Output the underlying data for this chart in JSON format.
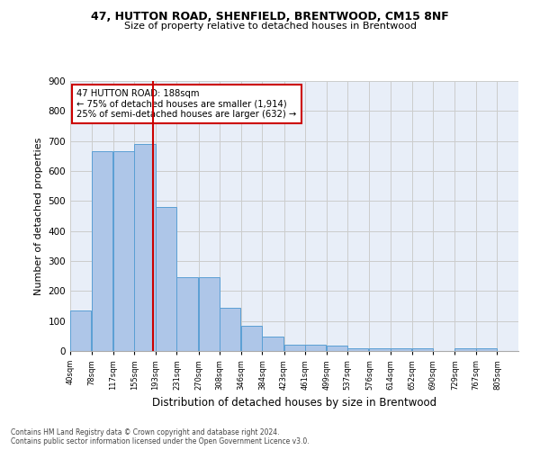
{
  "title1": "47, HUTTON ROAD, SHENFIELD, BRENTWOOD, CM15 8NF",
  "title2": "Size of property relative to detached houses in Brentwood",
  "xlabel": "Distribution of detached houses by size in Brentwood",
  "ylabel": "Number of detached properties",
  "bar_values": [
    135,
    665,
    665,
    690,
    480,
    245,
    245,
    145,
    85,
    47,
    22,
    20,
    18,
    10,
    8,
    8,
    8,
    0,
    8,
    8,
    0
  ],
  "bin_edges": [
    40,
    78,
    117,
    155,
    193,
    231,
    270,
    308,
    346,
    384,
    423,
    461,
    499,
    537,
    576,
    614,
    652,
    690,
    729,
    767,
    805
  ],
  "x_labels": [
    "40sqm",
    "78sqm",
    "117sqm",
    "155sqm",
    "193sqm",
    "231sqm",
    "270sqm",
    "308sqm",
    "346sqm",
    "384sqm",
    "423sqm",
    "461sqm",
    "499sqm",
    "537sqm",
    "576sqm",
    "614sqm",
    "652sqm",
    "690sqm",
    "729sqm",
    "767sqm",
    "805sqm"
  ],
  "bar_color": "#aec6e8",
  "bar_edge_color": "#5a9fd4",
  "red_line_x": 188,
  "annotation_line1": "47 HUTTON ROAD: 188sqm",
  "annotation_line2": "← 75% of detached houses are smaller (1,914)",
  "annotation_line3": "25% of semi-detached houses are larger (632) →",
  "annotation_box_color": "#ffffff",
  "annotation_border_color": "#cc0000",
  "vline_color": "#cc0000",
  "grid_color": "#cccccc",
  "background_color": "#e8eef8",
  "footer1": "Contains HM Land Registry data © Crown copyright and database right 2024.",
  "footer2": "Contains public sector information licensed under the Open Government Licence v3.0.",
  "ylim": [
    0,
    900
  ],
  "yticks": [
    0,
    100,
    200,
    300,
    400,
    500,
    600,
    700,
    800,
    900
  ]
}
